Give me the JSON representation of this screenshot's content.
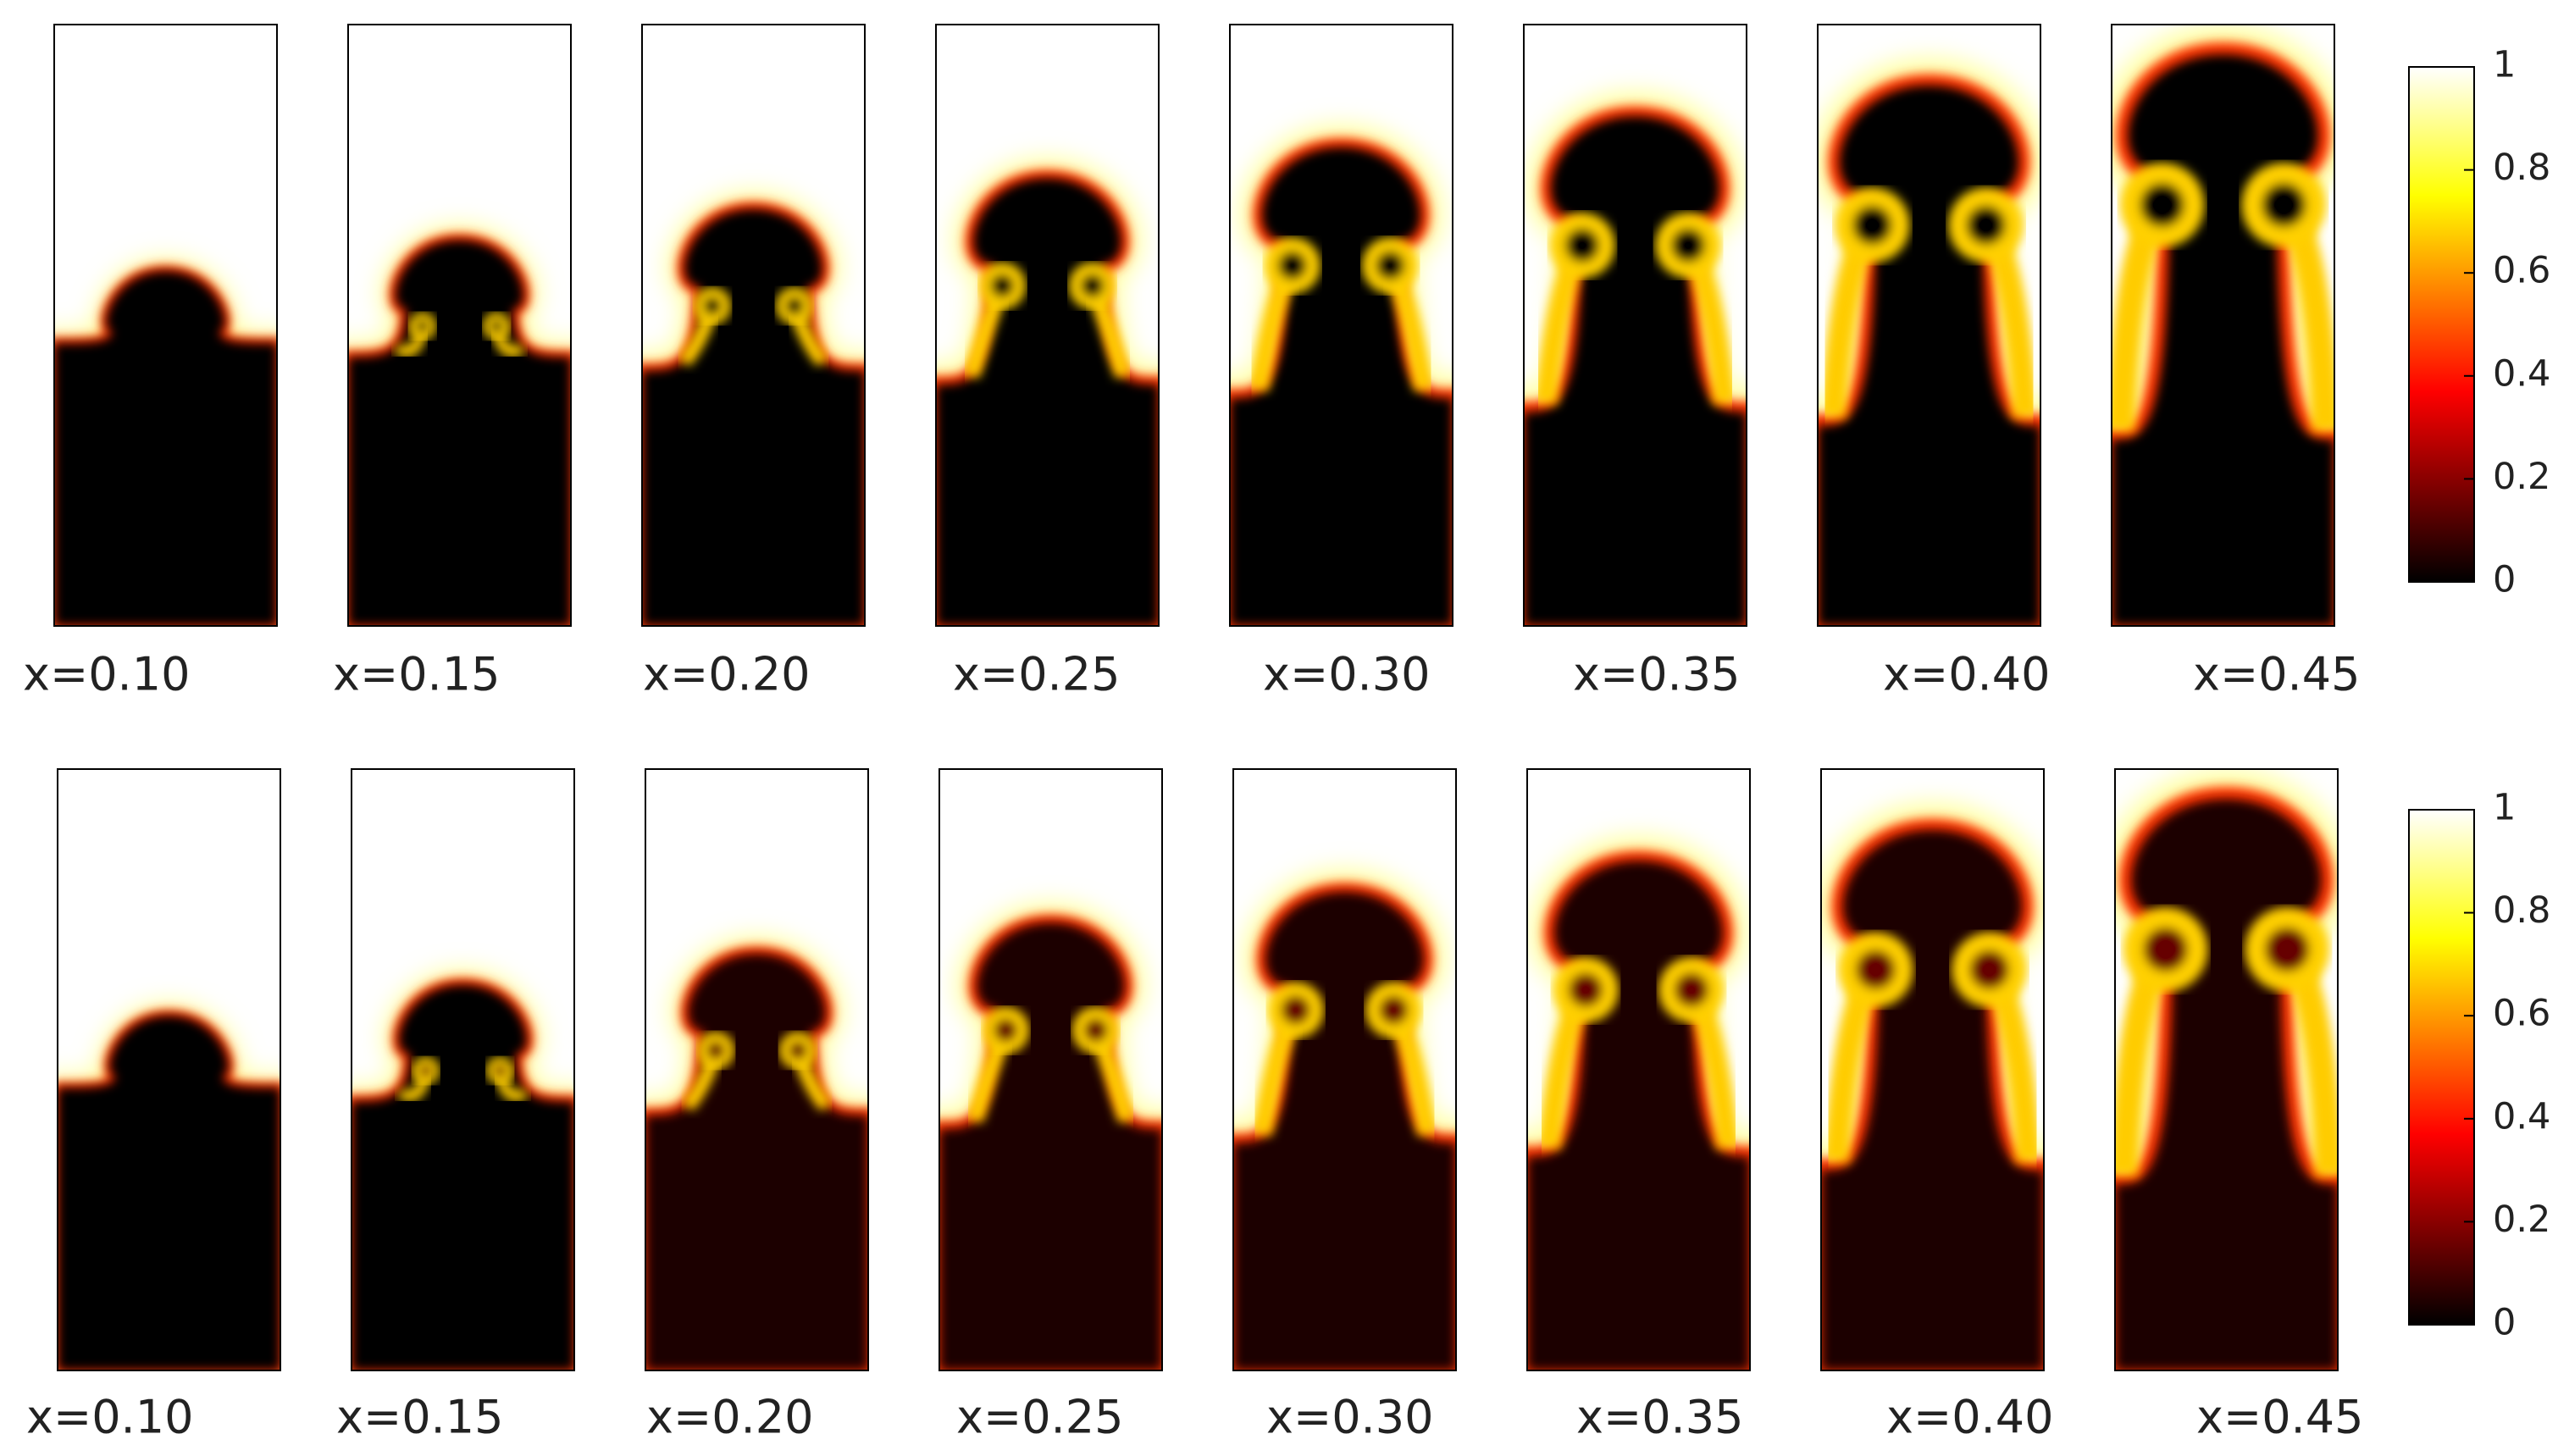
{
  "rows": [
    {
      "labels": [
        "x=0.10",
        "x=0.15",
        "x=0.20",
        "x=0.25",
        "x=0.30",
        "x=0.35",
        "x=0.40",
        "x=0.45"
      ],
      "colorbar": {
        "ticks": [
          0,
          0.2,
          0.4,
          0.6,
          0.8,
          1
        ]
      }
    },
    {
      "labels": [
        "x=0.10",
        "x=0.15",
        "x=0.20",
        "x=0.25",
        "x=0.30",
        "x=0.35",
        "x=0.40",
        "x=0.45"
      ],
      "colorbar": {
        "ticks": [
          0,
          0.2,
          0.4,
          0.6,
          0.8,
          1
        ]
      }
    }
  ]
}
